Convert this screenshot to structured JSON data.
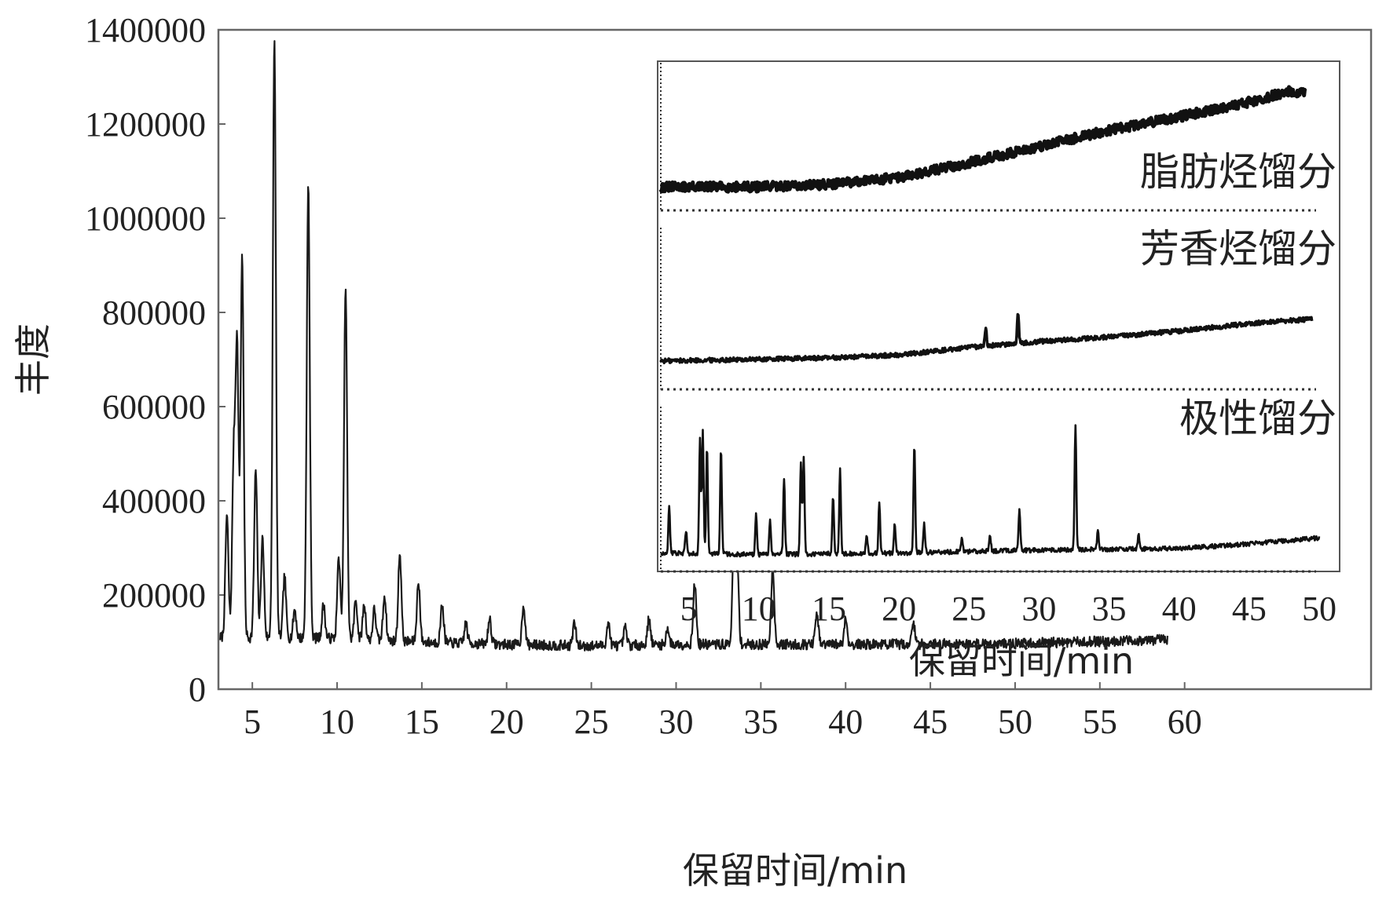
{
  "chart_data": [
    {
      "type": "line",
      "xlabel": "保留时间/min",
      "ylabel": "丰度",
      "xlim": [
        3,
        71
      ],
      "ylim": [
        0,
        1400000
      ],
      "xticks": [
        "5",
        "10",
        "15",
        "20",
        "25",
        "30",
        "35",
        "40",
        "45",
        "50",
        "55",
        "60"
      ],
      "yticks": [
        "0",
        "200000",
        "400000",
        "600000",
        "800000",
        "1000000",
        "1200000",
        "1400000"
      ],
      "baseline": {
        "x": [
          3,
          10,
          15,
          20,
          25,
          30,
          40,
          50,
          59
        ],
        "y": [
          110000,
          108000,
          100000,
          95000,
          92000,
          95000,
          95000,
          97000,
          105000
        ]
      },
      "peaks": {
        "x": [
          3.5,
          3.9,
          4.1,
          4.4,
          5.2,
          5.6,
          6.3,
          6.9,
          7.5,
          8.3,
          9.2,
          10.1,
          10.5,
          11.1,
          11.6,
          12.2,
          12.8,
          13.7,
          14.8,
          16.2,
          17.6,
          19.0,
          21.0,
          24.0,
          26.0,
          27.0,
          28.4,
          29.5,
          31.1,
          33.4,
          33.6,
          35.7,
          38.3,
          40.0,
          44.0
        ],
        "y": [
          370000,
          480000,
          720000,
          920000,
          465000,
          320000,
          1380000,
          240000,
          170000,
          1070000,
          180000,
          280000,
          850000,
          190000,
          180000,
          170000,
          200000,
          290000,
          230000,
          180000,
          140000,
          150000,
          180000,
          140000,
          140000,
          130000,
          150000,
          130000,
          225000,
          280000,
          275000,
          260000,
          160000,
          150000,
          140000
        ]
      },
      "grid": false
    },
    {
      "type": "line",
      "inset": true,
      "xlabel": "保留时间/min",
      "xlim": [
        3,
        50
      ],
      "xticks": [
        "5",
        "10",
        "15",
        "20",
        "25",
        "30",
        "35",
        "40",
        "45",
        "50"
      ],
      "series": [
        {
          "name": "脂肪烃馏分",
          "x": [
            3,
            10,
            15,
            20,
            25,
            30,
            35,
            40,
            45,
            48,
            49
          ],
          "y": [
            0.15,
            0.15,
            0.17,
            0.22,
            0.33,
            0.45,
            0.57,
            0.67,
            0.78,
            0.86,
            0.84
          ],
          "peaks": {
            "x": [],
            "y": []
          }
        },
        {
          "name": "芳香烃馏分",
          "x": [
            3,
            10,
            15,
            20,
            25,
            30,
            35,
            40,
            45,
            49.5
          ],
          "y": [
            0.17,
            0.18,
            0.19,
            0.21,
            0.26,
            0.3,
            0.33,
            0.37,
            0.42,
            0.45
          ],
          "peaks": {
            "x": [
              26.2,
              28.5
            ],
            "y": [
              0.4,
              0.5
            ]
          }
        },
        {
          "name": "极性馏分",
          "x": [
            3,
            10,
            20,
            30,
            40,
            45,
            50
          ],
          "y": [
            0.1,
            0.09,
            0.1,
            0.12,
            0.13,
            0.16,
            0.2
          ],
          "peaks": {
            "x": [
              3.6,
              4.8,
              5.8,
              6.0,
              6.3,
              7.3,
              9.8,
              10.8,
              11.8,
              13.0,
              13.2,
              15.3,
              15.8,
              17.7,
              18.6,
              19.7,
              21.1,
              21.8,
              24.5,
              26.5,
              28.6,
              32.6,
              34.2,
              37.1
            ],
            "y": [
              0.4,
              0.25,
              0.85,
              0.9,
              0.8,
              0.78,
              0.35,
              0.32,
              0.6,
              0.7,
              0.72,
              0.48,
              0.65,
              0.22,
              0.42,
              0.3,
              0.82,
              0.3,
              0.2,
              0.22,
              0.38,
              0.95,
              0.26,
              0.22
            ]
          }
        }
      ]
    }
  ]
}
